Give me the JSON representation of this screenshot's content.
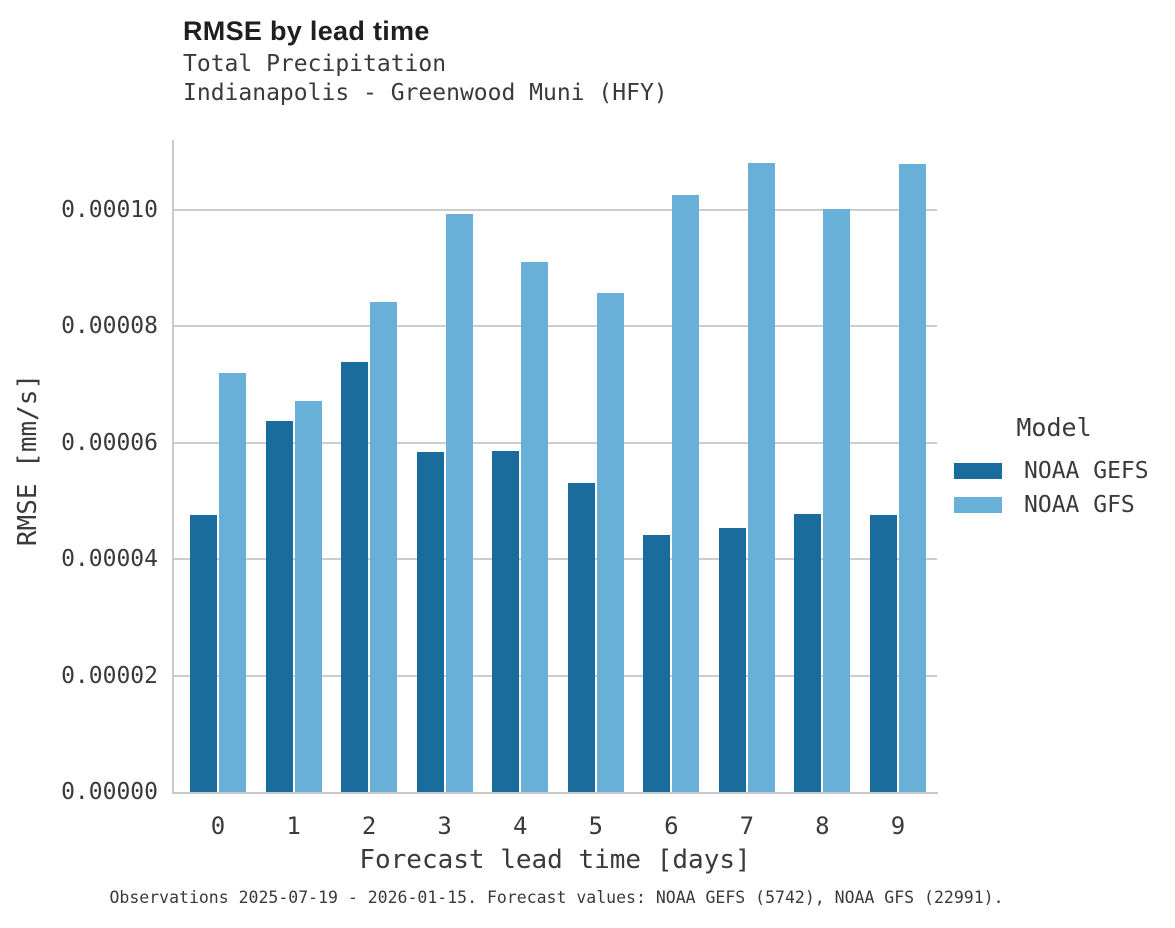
{
  "header": {
    "title": "RMSE by lead time",
    "subtitle_line1": "Total Precipitation",
    "subtitle_line2": "Indianapolis - Greenwood Muni (HFY)"
  },
  "chart_data": {
    "type": "bar",
    "title": "RMSE by lead time",
    "categories": [
      "0",
      "1",
      "2",
      "3",
      "4",
      "5",
      "6",
      "7",
      "8",
      "9"
    ],
    "series": [
      {
        "name": "NOAA GEFS",
        "color": "#1a6c9d",
        "values": [
          4.75e-05,
          6.38e-05,
          7.39e-05,
          5.84e-05,
          5.85e-05,
          5.3e-05,
          4.42e-05,
          4.53e-05,
          4.78e-05,
          4.75e-05
        ]
      },
      {
        "name": "NOAA GFS",
        "color": "#69b0d9",
        "values": [
          7.19e-05,
          6.72e-05,
          8.41e-05,
          9.93e-05,
          9.1e-05,
          8.57e-05,
          0.0001026,
          0.0001081,
          0.0001002,
          0.0001078
        ]
      }
    ],
    "xlabel": "Forecast lead time [days]",
    "ylabel": "RMSE [mm/s]",
    "ylim": [
      0,
      0.000112
    ],
    "yticks": [
      0,
      2e-05,
      4e-05,
      6e-05,
      8e-05,
      0.0001
    ],
    "ytick_labels": [
      "0.00000",
      "0.00002",
      "0.00004",
      "0.00006",
      "0.00008",
      "0.00010"
    ],
    "grid": "horizontal",
    "legend_title": "Model",
    "legend_position": "right"
  },
  "footer": {
    "note": "Observations 2025-07-19 - 2026-01-15. Forecast values: NOAA GEFS (5742), NOAA GFS (22991)."
  }
}
